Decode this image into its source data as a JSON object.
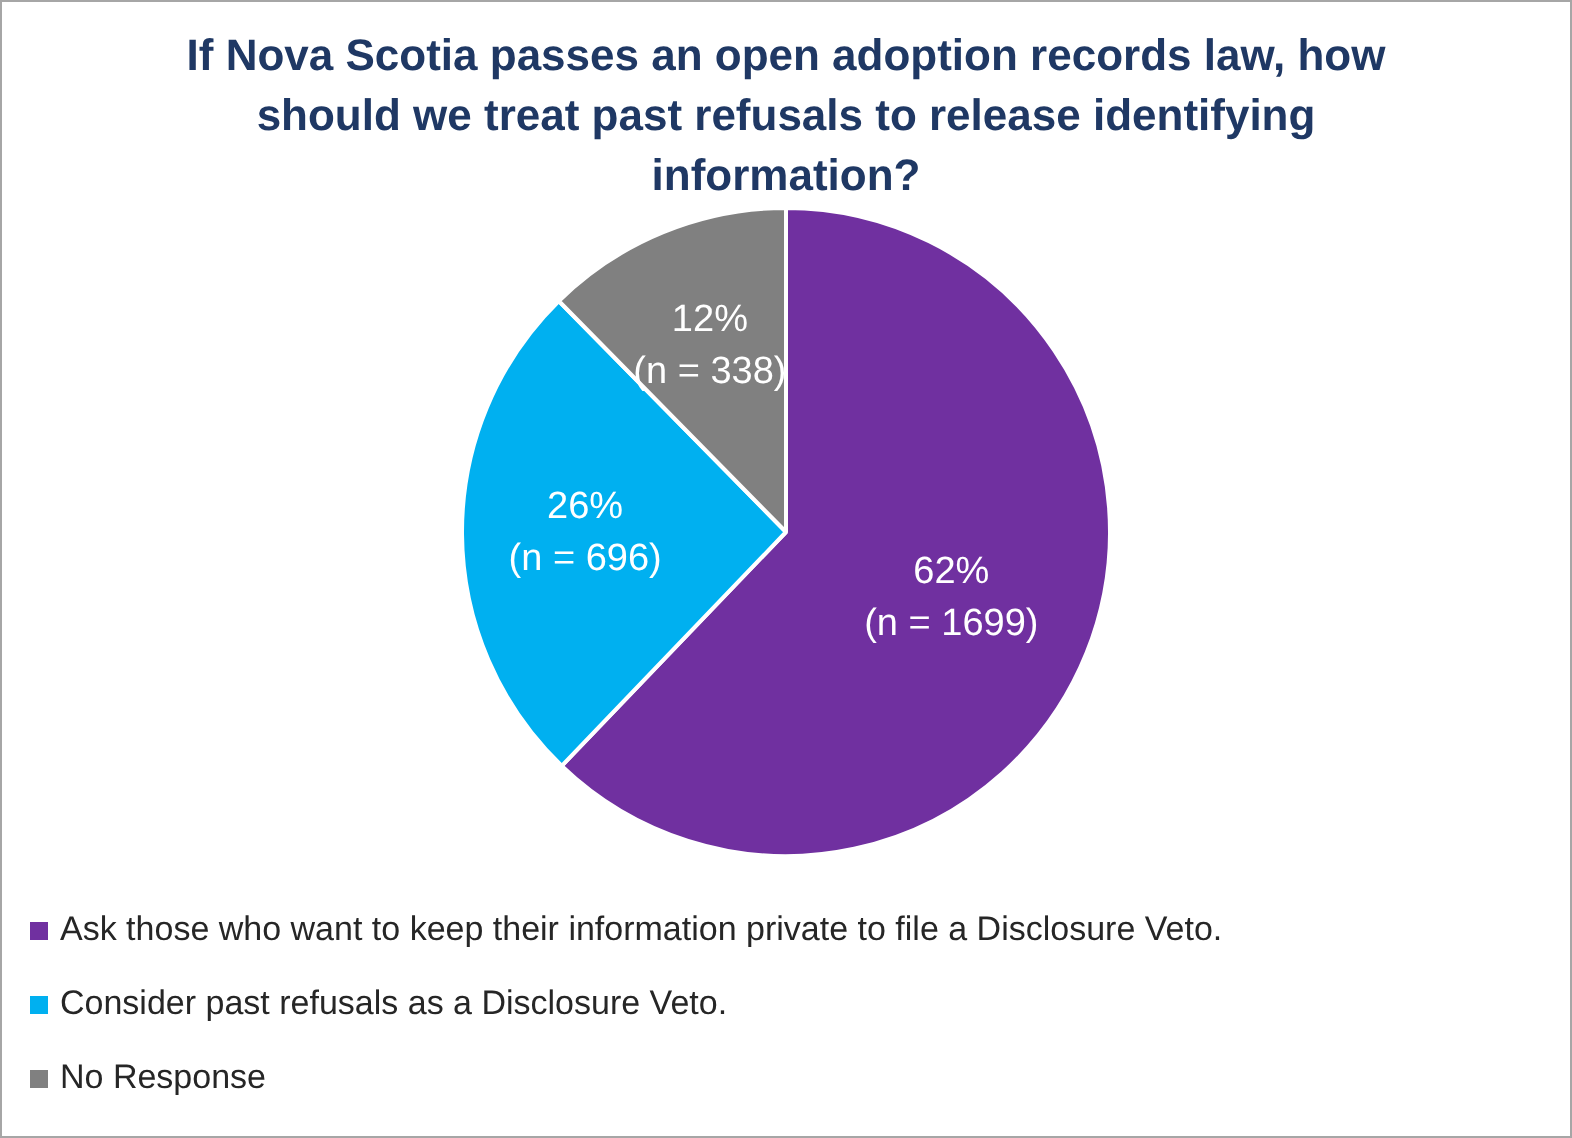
{
  "chart_data": {
    "type": "pie",
    "title": "If Nova Scotia passes an open adoption records law, how should we treat past refusals to release identifying information?",
    "categories": [
      "Ask those who want to keep their information private to file a Disclosure Veto.",
      "Consider past refusals as a Disclosure Veto.",
      "No Response"
    ],
    "values": [
      1699,
      696,
      338
    ],
    "value_labels": [
      "62%\n(n = 1699)",
      "26%\n(n = 696)",
      "12%\n(n = 338)"
    ],
    "colors": [
      "#7030a0",
      "#00b0f0",
      "#808080"
    ],
    "legend": "bottom"
  }
}
